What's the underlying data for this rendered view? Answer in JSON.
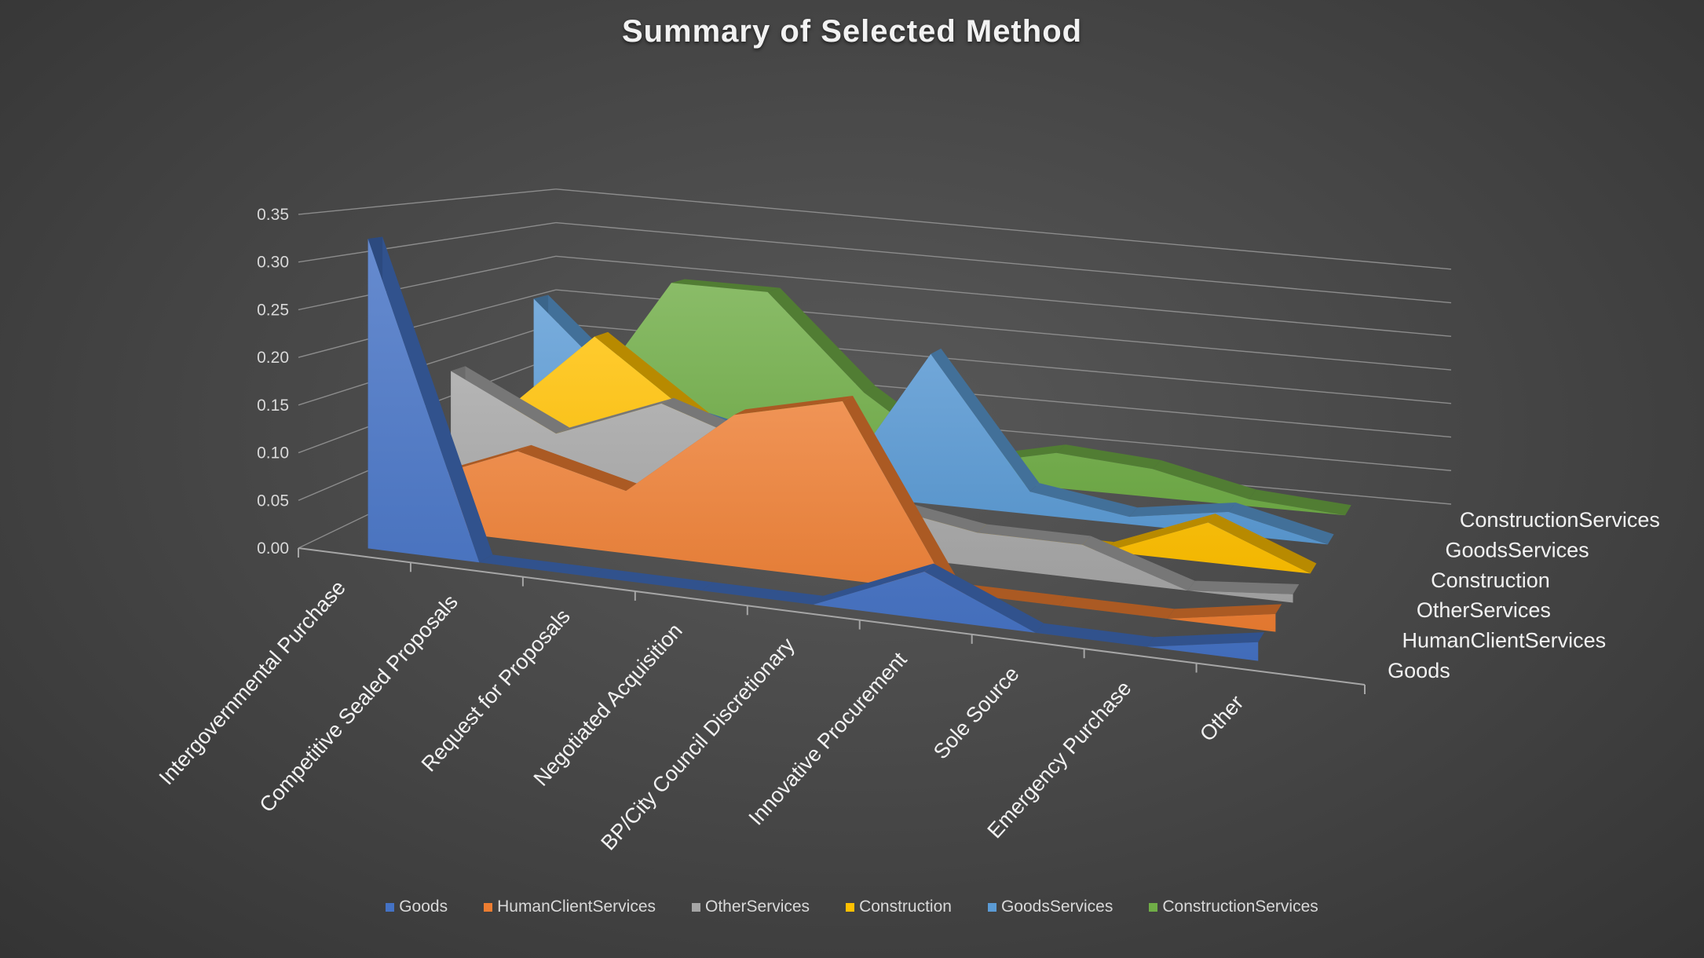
{
  "chart_data": {
    "type": "area",
    "title": "Summary of Selected Method",
    "categories": [
      "Intergovernmental Purchase",
      "Competitive Sealed Proposals",
      "Request for Proposals",
      "Negotiated Acquisition",
      "BP/City Council Discretionary",
      "Innovative Procurement",
      "Sole Source",
      "Emergency Purchase",
      "Other"
    ],
    "series": [
      {
        "name": "Goods",
        "color": "#4472c4",
        "values": [
          0.33,
          0.0,
          0.0,
          0.0,
          0.0,
          0.05,
          0.0,
          0.0,
          0.02
        ]
      },
      {
        "name": "HumanClientServices",
        "color": "#ed7d31",
        "values": [
          0.05,
          0.1,
          0.07,
          0.17,
          0.2,
          0.0,
          0.0,
          0.0,
          0.02
        ]
      },
      {
        "name": "OtherServices",
        "color": "#a5a5a5",
        "values": [
          0.16,
          0.1,
          0.15,
          0.11,
          0.06,
          0.04,
          0.04,
          0.0,
          0.01
        ]
      },
      {
        "name": "Construction",
        "color": "#ffc000",
        "values": [
          0.08,
          0.2,
          0.11,
          0.02,
          0.02,
          0.0,
          0.0,
          0.05,
          0.0
        ]
      },
      {
        "name": "GoodsServices",
        "color": "#5b9bd5",
        "values": [
          0.22,
          0.1,
          0.07,
          0.0,
          0.2,
          0.03,
          0.01,
          0.03,
          0.0
        ]
      },
      {
        "name": "ConstructionServices",
        "color": "#70ad47",
        "values": [
          0.04,
          0.24,
          0.24,
          0.11,
          0.02,
          0.05,
          0.04,
          0.01,
          0.0
        ]
      }
    ],
    "yticks": [
      "0.00",
      "0.05",
      "0.10",
      "0.15",
      "0.20",
      "0.25",
      "0.30",
      "0.35"
    ],
    "ylim": [
      0,
      0.35
    ],
    "grid": true,
    "legend_position": "bottom",
    "xlabel": "",
    "ylabel": ""
  }
}
